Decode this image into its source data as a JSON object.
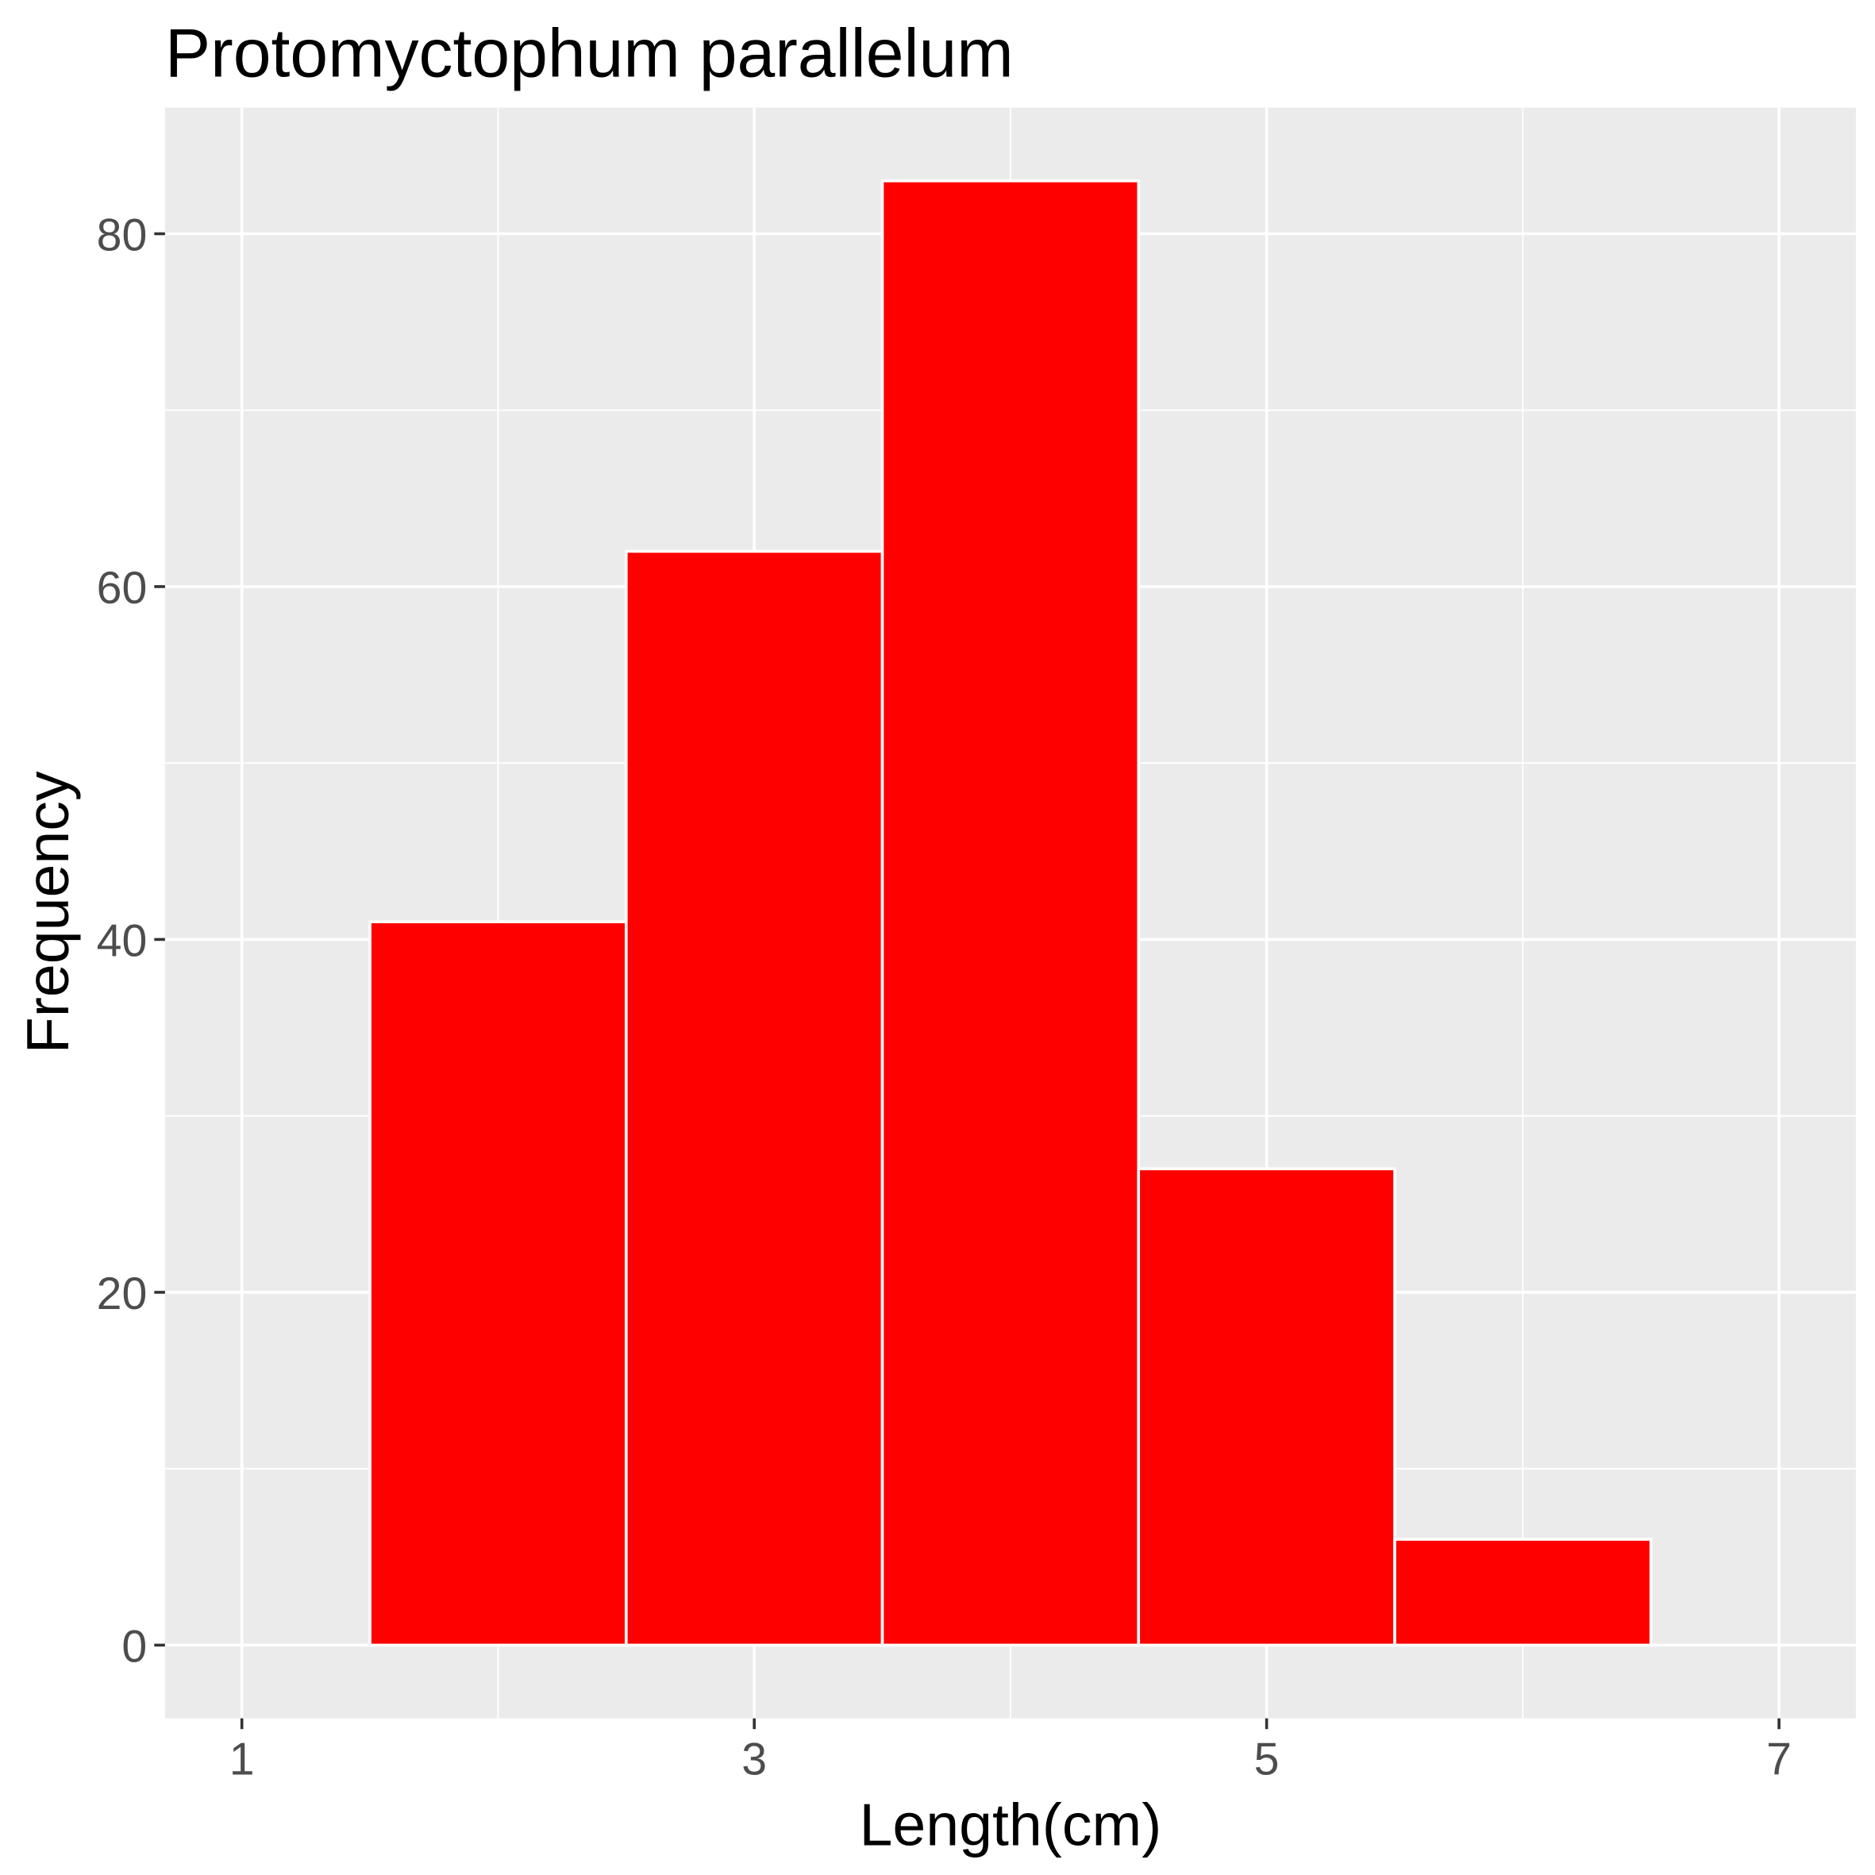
{
  "chart_data": {
    "type": "bar",
    "subtype": "histogram",
    "title": "Protomyctophum parallelum",
    "xlabel": "Length(cm)",
    "ylabel": "Frequency",
    "bins": [
      {
        "center": 2,
        "width": 1,
        "count": 41
      },
      {
        "center": 3,
        "width": 1,
        "count": 62
      },
      {
        "center": 4,
        "width": 1,
        "count": 83
      },
      {
        "center": 5,
        "width": 1,
        "count": 27
      },
      {
        "center": 6,
        "width": 1,
        "count": 6
      }
    ],
    "xlim": [
      0.7,
      7.3
    ],
    "ylim": [
      -4.15,
      87.15
    ],
    "xticks": [
      1,
      3,
      5,
      7
    ],
    "yticks": [
      0,
      20,
      40,
      60,
      80
    ],
    "grid": true,
    "bar_color": "#FF0000",
    "bar_edge_color": "#FFFFFF",
    "panel_background": "#EBEBEB"
  }
}
